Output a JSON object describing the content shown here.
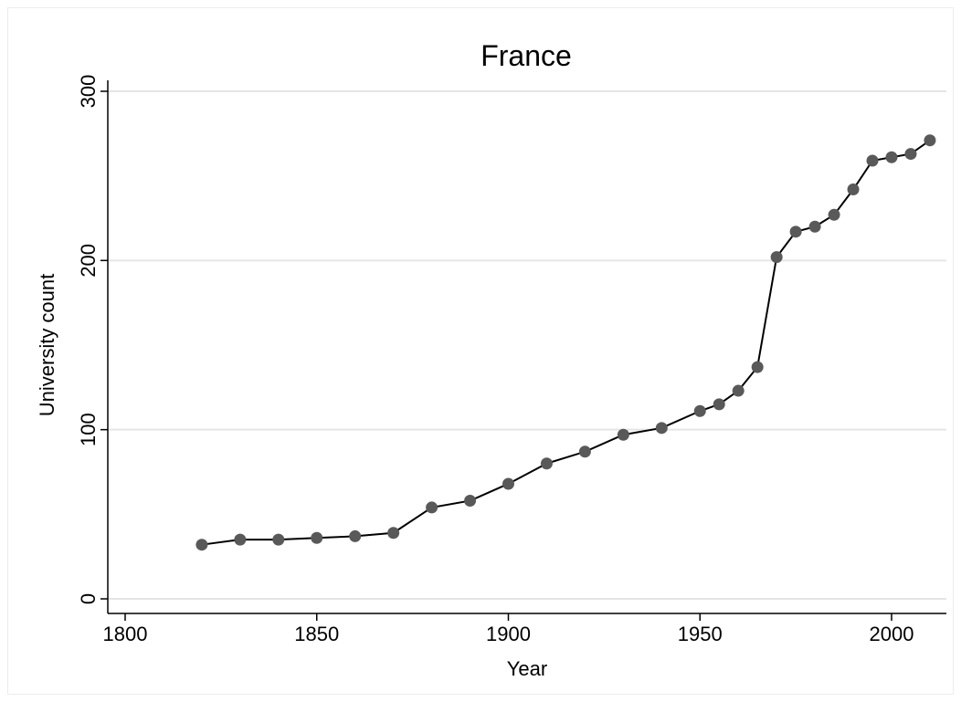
{
  "chart_data": {
    "type": "line",
    "title": "France",
    "xlabel": "Year",
    "ylabel": "University count",
    "xlim": [
      1800,
      2010
    ],
    "ylim": [
      0,
      300
    ],
    "xticks": [
      1800,
      1850,
      1900,
      1950,
      2000
    ],
    "yticks": [
      0,
      100,
      200,
      300
    ],
    "grid": "horizontal",
    "colors": {
      "line": "#000000",
      "marker": "#595959",
      "grid": "#e5e5e5"
    },
    "series": [
      {
        "x": [
          1820,
          1830,
          1840,
          1850,
          1860,
          1870,
          1880,
          1890,
          1900,
          1910,
          1920,
          1930,
          1940,
          1950,
          1955,
          1960,
          1965,
          1970,
          1975,
          1980,
          1985,
          1990,
          1995,
          2000,
          2005,
          2010
        ],
        "y": [
          32,
          35,
          35,
          36,
          37,
          39,
          54,
          58,
          68,
          80,
          87,
          97,
          101,
          111,
          115,
          123,
          137,
          202,
          217,
          220,
          227,
          242,
          259,
          261,
          263,
          271
        ]
      }
    ]
  }
}
